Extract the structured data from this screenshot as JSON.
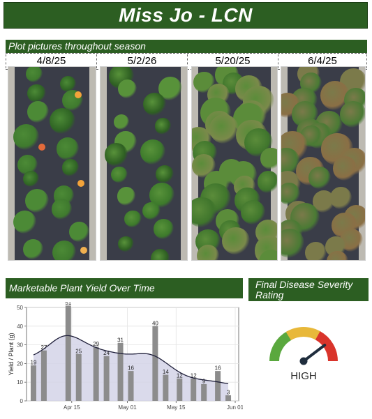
{
  "header": {
    "title": "Miss Jo - LCN"
  },
  "photos_section": {
    "title": "Plot pictures throughout season",
    "dates": [
      "4/8/25",
      "5/2/26",
      "5/20/25",
      "6/4/25"
    ]
  },
  "yield_section": {
    "title": "Marketable Plant Yield Over Time"
  },
  "disease_section": {
    "title_line1": "Final Disease Severity",
    "title_line2": "Rating",
    "rating": "HIGH",
    "level": 0.85,
    "colors": {
      "low": "#5aa83e",
      "mid": "#e8b83a",
      "high": "#d9342b"
    }
  },
  "chart_data": {
    "type": "bar",
    "x_unit": "date",
    "xlabel": "",
    "ylabel": "Yield / Plant (g)",
    "ylim": [
      0,
      50
    ],
    "yticks": [
      0,
      10,
      20,
      30,
      40,
      50
    ],
    "xticks": [
      {
        "date": "2025-04-15",
        "label": "Apr 15"
      },
      {
        "date": "2025-05-01",
        "label": "May 01"
      },
      {
        "date": "2025-05-15",
        "label": "May 15"
      },
      {
        "date": "2025-06-01",
        "label": "Jun 01"
      }
    ],
    "xlim": [
      "2025-04-02",
      "2025-06-02"
    ],
    "grid": true,
    "bar_color": "#8c8c8c",
    "smooth_fill": "#d4d3e8",
    "points": [
      {
        "date": "2025-04-04",
        "value": 19
      },
      {
        "date": "2025-04-07",
        "value": 27
      },
      {
        "date": "2025-04-14",
        "value": 51
      },
      {
        "date": "2025-04-17",
        "value": 25
      },
      {
        "date": "2025-04-22",
        "value": 29
      },
      {
        "date": "2025-04-25",
        "value": 24
      },
      {
        "date": "2025-04-29",
        "value": 31
      },
      {
        "date": "2025-05-02",
        "value": 16
      },
      {
        "date": "2025-05-09",
        "value": 40
      },
      {
        "date": "2025-05-12",
        "value": 14
      },
      {
        "date": "2025-05-16",
        "value": 12
      },
      {
        "date": "2025-05-20",
        "value": 12
      },
      {
        "date": "2025-05-23",
        "value": 9
      },
      {
        "date": "2025-05-27",
        "value": 16
      },
      {
        "date": "2025-05-30",
        "value": 3
      }
    ]
  }
}
